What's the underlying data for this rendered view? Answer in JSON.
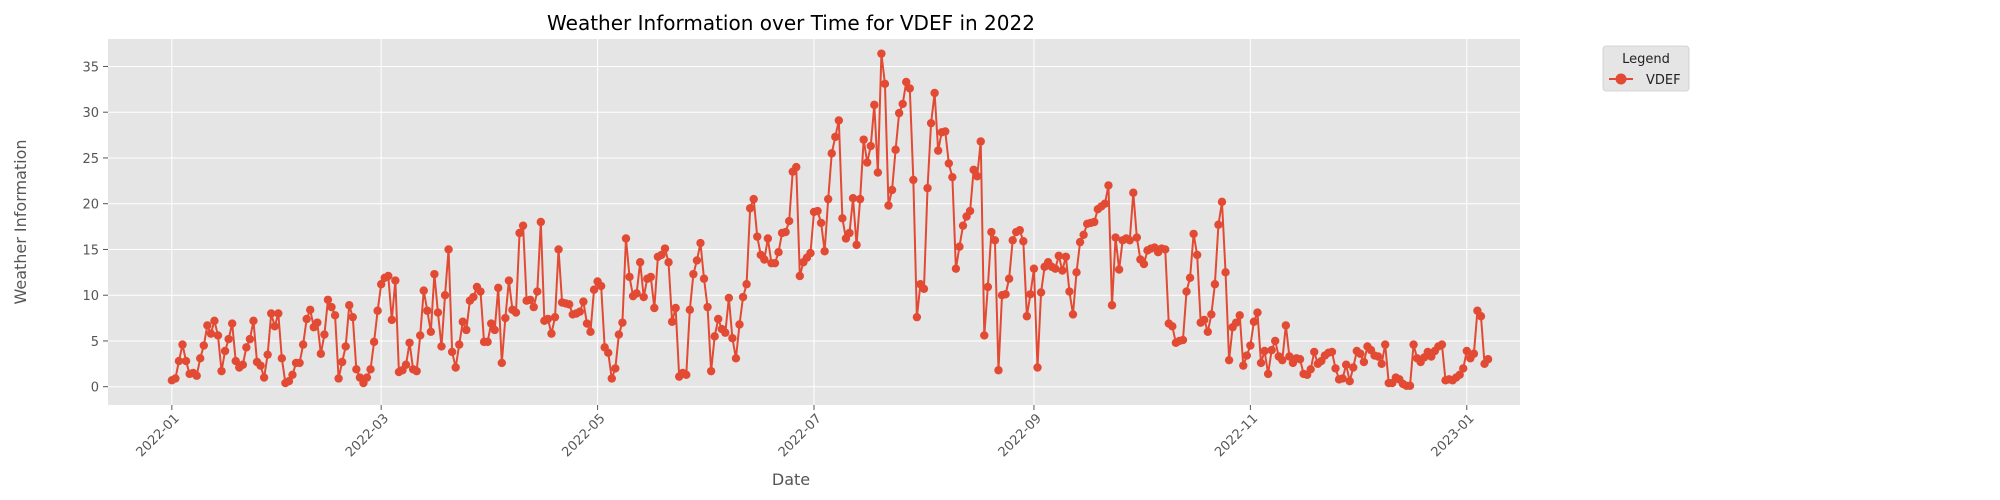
{
  "chart_data": {
    "type": "line",
    "title": "Weather Information over Time for VDEF in 2022",
    "xlabel": "Date",
    "ylabel": "Weather Information",
    "x_start": "2022-01-01",
    "x_end": "2022-12-31",
    "xlim": [
      "2021-12-14",
      "2023-01-16"
    ],
    "ylim": [
      -2,
      38
    ],
    "xticks": [
      "2022-01",
      "2022-03",
      "2022-05",
      "2022-07",
      "2022-09",
      "2022-11",
      "2023-01"
    ],
    "yticks": [
      0,
      5,
      10,
      15,
      20,
      25,
      30,
      35
    ],
    "grid": true,
    "legend": {
      "title": "Legend",
      "placement": "outside-top-right"
    },
    "colors": {
      "series": "#E24A33",
      "plot_background": "#E5E5E5",
      "grid": "#FFFFFF"
    },
    "series": [
      {
        "name": "VDEF",
        "values": [
          0.7,
          0.9,
          2.8,
          4.6,
          2.8,
          1.4,
          1.5,
          1.2,
          3.1,
          4.5,
          6.7,
          5.8,
          7.2,
          5.6,
          1.7,
          3.9,
          5.2,
          6.9,
          2.8,
          2.1,
          2.4,
          4.3,
          5.2,
          7.2,
          2.7,
          2.3,
          1.0,
          3.5,
          8.0,
          6.6,
          8.0,
          3.1,
          0.4,
          0.6,
          1.3,
          2.6,
          2.6,
          4.6,
          7.4,
          8.4,
          6.5,
          7.0,
          3.6,
          5.7,
          9.5,
          8.7,
          7.8,
          0.9,
          2.7,
          4.4,
          8.9,
          7.6,
          1.9,
          1.0,
          0.4,
          1.0,
          1.9,
          4.9,
          8.3,
          11.2,
          11.9,
          12.1,
          7.3,
          11.6,
          1.6,
          1.8,
          2.4,
          4.8,
          1.9,
          1.7,
          5.6,
          10.5,
          8.3,
          6.0,
          12.3,
          8.1,
          4.4,
          10.0,
          15.0,
          3.8,
          2.1,
          4.6,
          7.1,
          6.2,
          9.4,
          9.8,
          10.9,
          10.4,
          4.9,
          4.9,
          6.9,
          6.2,
          10.8,
          2.6,
          7.5,
          11.6,
          8.4,
          8.1,
          16.8,
          17.6,
          9.4,
          9.5,
          8.7,
          10.4,
          18.0,
          7.2,
          7.4,
          5.8,
          7.6,
          15.0,
          9.2,
          9.1,
          9.0,
          7.9,
          8.0,
          8.2,
          9.3,
          6.9,
          6.0,
          10.6,
          11.5,
          11.0,
          4.3,
          3.7,
          0.9,
          2.0,
          5.7,
          7.0,
          16.2,
          12.0,
          9.9,
          10.2,
          13.6,
          9.8,
          11.8,
          12.0,
          8.6,
          14.2,
          14.4,
          15.1,
          13.6,
          7.1,
          8.6,
          1.1,
          1.5,
          1.3,
          8.4,
          12.3,
          13.8,
          15.7,
          11.8,
          8.7,
          1.7,
          5.5,
          7.4,
          6.3,
          5.9,
          9.7,
          5.3,
          3.1,
          6.8,
          9.8,
          11.2,
          19.5,
          20.5,
          16.4,
          14.4,
          13.9,
          16.2,
          13.5,
          13.5,
          14.7,
          16.8,
          16.9,
          18.1,
          23.5,
          24.0,
          12.1,
          13.6,
          14.1,
          14.6,
          19.1,
          19.2,
          17.9,
          14.8,
          20.5,
          25.5,
          27.3,
          29.1,
          18.4,
          16.2,
          16.8,
          20.6,
          15.5,
          20.5,
          27.0,
          24.5,
          26.3,
          30.8,
          23.4,
          36.4,
          33.1,
          19.8,
          21.5,
          25.9,
          29.9,
          30.9,
          33.3,
          32.6,
          22.6,
          7.6,
          11.2,
          10.7,
          21.7,
          28.8,
          32.1,
          25.8,
          27.8,
          27.9,
          24.4,
          22.9,
          12.9,
          15.3,
          17.6,
          18.6,
          19.2,
          23.7,
          23.0,
          26.8,
          5.6,
          10.9,
          16.9,
          16.0,
          1.8,
          10.0,
          10.1,
          11.8,
          16.0,
          16.9,
          17.1,
          15.9,
          7.7,
          10.1,
          12.9,
          2.1,
          10.3,
          13.1,
          13.6,
          13.1,
          12.9,
          14.3,
          12.7,
          14.2,
          10.4,
          7.9,
          12.5,
          15.8,
          16.6,
          17.8,
          17.9,
          18.0,
          19.4,
          19.7,
          20.0,
          22.0,
          8.9,
          16.3,
          12.8,
          16.0,
          16.2,
          16.0,
          21.2,
          16.3,
          13.9,
          13.4,
          14.9,
          15.1,
          15.2,
          14.7,
          15.1,
          15.0,
          6.9,
          6.6,
          4.8,
          5.0,
          5.1,
          10.4,
          11.9,
          16.7,
          14.4,
          7.0,
          7.3,
          6.0,
          7.9,
          11.2,
          17.7,
          20.2,
          12.5,
          2.9,
          6.5,
          7.0,
          7.8,
          2.3,
          3.4,
          4.5,
          7.1,
          8.1,
          2.6,
          3.9,
          1.4,
          4.0,
          5.0,
          3.3,
          2.9,
          6.7,
          3.3,
          2.6,
          3.1,
          3.0,
          1.4,
          1.3,
          1.9,
          3.8,
          2.5,
          2.8,
          3.4,
          3.7,
          3.8,
          2.0,
          0.8,
          0.9,
          2.4,
          0.6,
          2.1,
          3.9,
          3.6,
          2.7,
          4.4,
          4.0,
          3.4,
          3.3,
          2.5,
          4.6,
          0.4,
          0.4,
          1.0,
          0.8,
          0.3,
          0.1,
          0.1,
          4.6,
          3.1,
          2.7,
          3.2,
          3.8,
          3.3,
          3.9,
          4.4,
          4.6,
          0.7,
          0.8,
          0.7,
          1.0,
          1.3,
          2.0,
          3.9,
          3.1,
          3.6,
          8.3,
          7.7,
          2.5,
          3.0
        ]
      }
    ]
  }
}
